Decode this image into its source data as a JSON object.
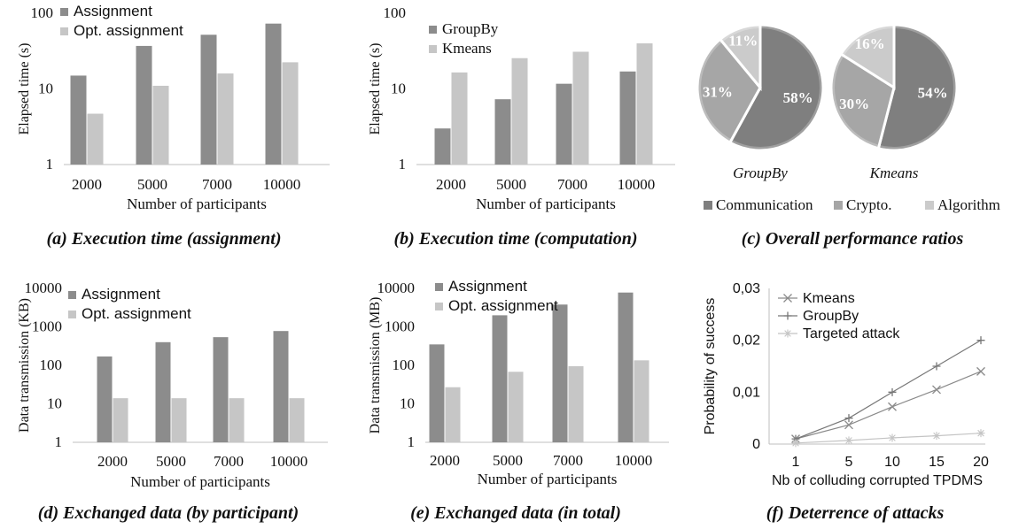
{
  "colors": {
    "dark": "#8c8c8c",
    "light": "#c6c6c6",
    "communication": "#7f7f7f",
    "crypto": "#a6a6a6",
    "algorithm": "#cbcbcb",
    "axis": "#bfbfbf",
    "line_kmeans": "#8a8a8a",
    "line_groupby": "#777777",
    "line_targeted": "#c4c4c4"
  },
  "chart_data": [
    {
      "id": "a",
      "type": "bar",
      "caption": "(a) Execution time (assignment)",
      "ylabel": "Elapsed time (s)",
      "xlabel": "Number of participants",
      "yscale": "log",
      "ylim": [
        1,
        100
      ],
      "yticks": [
        "1",
        "10",
        "100"
      ],
      "categories": [
        "2000",
        "5000",
        "7000",
        "10000"
      ],
      "series": [
        {
          "name": "Assignment",
          "values": [
            15,
            37,
            52,
            73
          ]
        },
        {
          "name": "Opt. assignment",
          "values": [
            4.7,
            11,
            16,
            22.5
          ]
        }
      ],
      "legend": "top-left"
    },
    {
      "id": "b",
      "type": "bar",
      "caption": "(b) Execution time (computation)",
      "ylabel": "Elapsed time (s)",
      "xlabel": "Number of participants",
      "yscale": "log",
      "ylim": [
        1,
        100
      ],
      "yticks": [
        "1",
        "10",
        "100"
      ],
      "categories": [
        "2000",
        "5000",
        "7000",
        "10000"
      ],
      "series": [
        {
          "name": "GroupBy",
          "values": [
            3,
            7.3,
            11.7,
            17
          ]
        },
        {
          "name": "Kmeans",
          "values": [
            16.5,
            25.5,
            31,
            40
          ]
        }
      ],
      "legend": "top-left"
    },
    {
      "id": "c",
      "type": "pie",
      "caption": "(c) Overall performance ratios",
      "legend_entries": [
        "Communication",
        "Crypto.",
        "Algorithm"
      ],
      "pies": [
        {
          "label": "GroupBy",
          "values": [
            58,
            31,
            11
          ],
          "labels": [
            "58%",
            "31%",
            "11%"
          ]
        },
        {
          "label": "Kmeans",
          "values": [
            54,
            30,
            16
          ],
          "labels": [
            "54%",
            "30%",
            "16%"
          ]
        }
      ],
      "legend": "bottom"
    },
    {
      "id": "d",
      "type": "bar",
      "caption": "(d) Exchanged data (by participant)",
      "ylabel": "Data transmission (KB)",
      "xlabel": "Number of participants",
      "yscale": "log",
      "ylim": [
        1,
        10000
      ],
      "yticks": [
        "1",
        "10",
        "100",
        "1000",
        "10000"
      ],
      "categories": [
        "2000",
        "5000",
        "7000",
        "10000"
      ],
      "series": [
        {
          "name": "Assignment",
          "values": [
            170,
            400,
            540,
            780
          ]
        },
        {
          "name": "Opt. assignment",
          "values": [
            14,
            14,
            14,
            14
          ]
        }
      ],
      "legend": "top-left"
    },
    {
      "id": "e",
      "type": "bar",
      "caption": "(e) Exchanged data (in total)",
      "ylabel": "Data transmission (MB)",
      "xlabel": "Number of participants",
      "yscale": "log",
      "ylim": [
        1,
        10000
      ],
      "yticks": [
        "1",
        "10",
        "100",
        "1000",
        "10000"
      ],
      "categories": [
        "2000",
        "5000",
        "7000",
        "10000"
      ],
      "series": [
        {
          "name": "Assignment",
          "values": [
            350,
            2000,
            3800,
            7800
          ]
        },
        {
          "name": "Opt. assignment",
          "values": [
            27,
            68,
            95,
            135
          ]
        }
      ],
      "legend": "top-left"
    },
    {
      "id": "f",
      "type": "line",
      "caption": "(f) Deterrence of attacks",
      "ylabel": "Probability of success",
      "xlabel": "Nb of colluding corrupted TPDMS",
      "ylim": [
        0,
        0.03
      ],
      "yticks": [
        "0",
        "0,01",
        "0,02",
        "0,03"
      ],
      "categories": [
        "1",
        "5",
        "10",
        "15",
        "20"
      ],
      "series": [
        {
          "name": "Kmeans",
          "marker": "x",
          "values": [
            0.001,
            0.0037,
            0.0072,
            0.0105,
            0.014
          ]
        },
        {
          "name": "GroupBy",
          "marker": "+",
          "values": [
            0.001,
            0.005,
            0.01,
            0.015,
            0.02
          ]
        },
        {
          "name": "Targeted attack",
          "marker": "*",
          "values": [
            0.0002,
            0.0007,
            0.0012,
            0.0016,
            0.0021
          ]
        }
      ],
      "legend": "top-left"
    }
  ]
}
